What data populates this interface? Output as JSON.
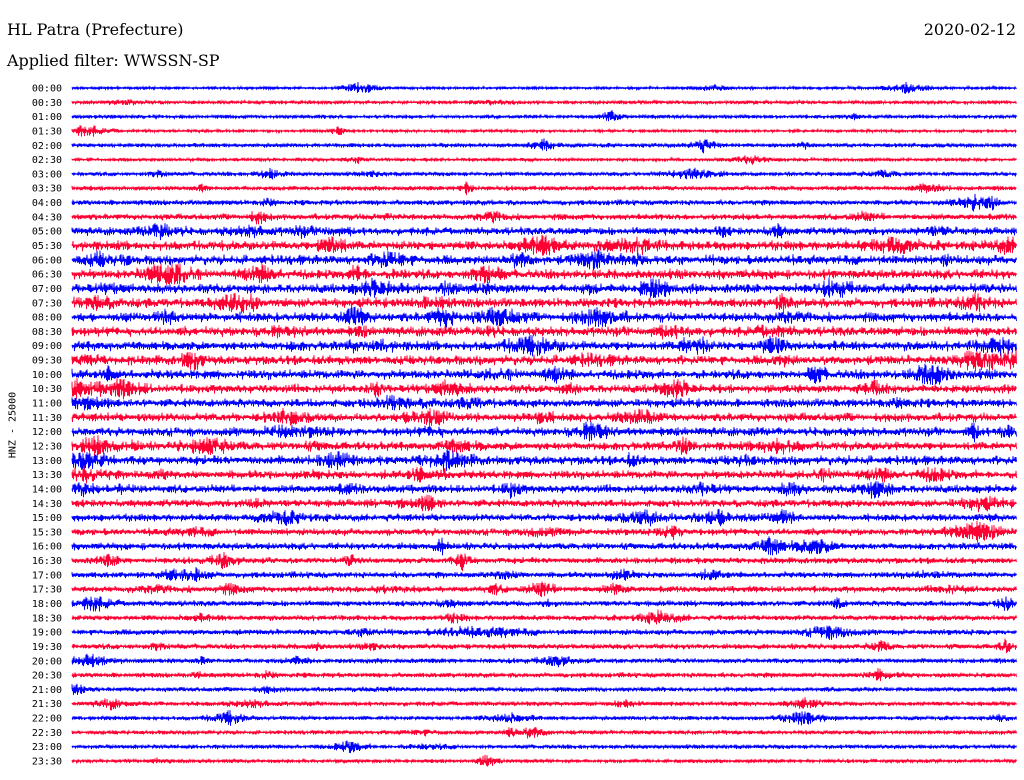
{
  "header": {
    "station": "HL Patra (Prefecture)",
    "date": "2020-02-12",
    "filter_text": "Applied filter: WWSSN-SP"
  },
  "chart_data": {
    "type": "line",
    "title": "HL Patra (Prefecture)",
    "ylabel": "HNZ - 25000",
    "colors": [
      "#0000ff",
      "#ff0033"
    ],
    "rows": [
      {
        "label": "00:00",
        "activity": 0.2
      },
      {
        "label": "00:30",
        "activity": 0.3
      },
      {
        "label": "01:00",
        "activity": 0.3
      },
      {
        "label": "01:30",
        "activity": 0.2
      },
      {
        "label": "02:00",
        "activity": 0.35
      },
      {
        "label": "02:30",
        "activity": 0.25
      },
      {
        "label": "03:00",
        "activity": 0.35
      },
      {
        "label": "03:30",
        "activity": 0.4
      },
      {
        "label": "04:00",
        "activity": 0.5
      },
      {
        "label": "04:30",
        "activity": 0.6
      },
      {
        "label": "05:00",
        "activity": 0.8
      },
      {
        "label": "05:30",
        "activity": 1.0
      },
      {
        "label": "06:00",
        "activity": 1.0
      },
      {
        "label": "06:30",
        "activity": 1.0
      },
      {
        "label": "07:00",
        "activity": 1.0
      },
      {
        "label": "07:30",
        "activity": 1.0
      },
      {
        "label": "08:00",
        "activity": 1.0
      },
      {
        "label": "08:30",
        "activity": 1.0
      },
      {
        "label": "09:00",
        "activity": 1.0
      },
      {
        "label": "09:30",
        "activity": 1.0
      },
      {
        "label": "10:00",
        "activity": 1.0
      },
      {
        "label": "10:30",
        "activity": 0.9
      },
      {
        "label": "11:00",
        "activity": 0.9
      },
      {
        "label": "11:30",
        "activity": 0.9
      },
      {
        "label": "12:00",
        "activity": 0.9
      },
      {
        "label": "12:30",
        "activity": 0.9
      },
      {
        "label": "13:00",
        "activity": 0.95
      },
      {
        "label": "13:30",
        "activity": 0.9
      },
      {
        "label": "14:00",
        "activity": 0.85
      },
      {
        "label": "14:30",
        "activity": 0.8
      },
      {
        "label": "15:00",
        "activity": 0.75
      },
      {
        "label": "15:30",
        "activity": 0.7
      },
      {
        "label": "16:00",
        "activity": 0.7
      },
      {
        "label": "16:30",
        "activity": 0.6
      },
      {
        "label": "17:00",
        "activity": 0.6
      },
      {
        "label": "17:30",
        "activity": 0.6
      },
      {
        "label": "18:00",
        "activity": 0.55
      },
      {
        "label": "18:30",
        "activity": 0.5
      },
      {
        "label": "19:00",
        "activity": 0.55
      },
      {
        "label": "19:30",
        "activity": 0.5
      },
      {
        "label": "20:00",
        "activity": 0.45
      },
      {
        "label": "20:30",
        "activity": 0.45
      },
      {
        "label": "21:00",
        "activity": 0.4
      },
      {
        "label": "21:30",
        "activity": 0.4
      },
      {
        "label": "22:00",
        "activity": 0.35
      },
      {
        "label": "22:30",
        "activity": 0.35
      },
      {
        "label": "23:00",
        "activity": 0.35
      },
      {
        "label": "23:30",
        "activity": 0.3
      }
    ]
  }
}
